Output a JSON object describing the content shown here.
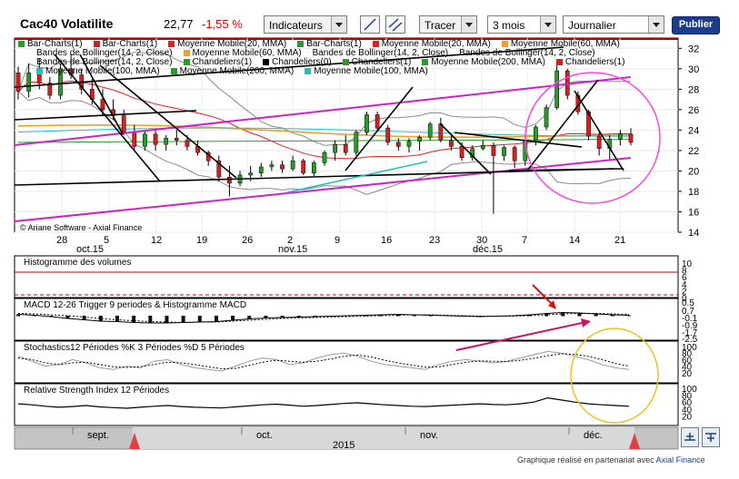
{
  "header": {
    "title": "Cac40 Volatilite",
    "price": "22,77",
    "change": "-1,55 %",
    "indicators_label": "Indicateurs",
    "draw_label": "Tracer",
    "period_label": "3 mois",
    "interval_label": "Journalier",
    "publish_label": "Publier"
  },
  "legend_rows": [
    [
      {
        "text": "Bar-Charts(1)",
        "color": "#2a9b2a"
      },
      {
        "text": "Bar-Charts(1)",
        "color": "#d62020"
      },
      {
        "text": "Moyenne Mobile(20, MMA)",
        "color": "#e02020"
      },
      {
        "text": "Bar-Charts(1)",
        "color": "#2a9b2a"
      },
      {
        "text": "Moyenne Mobile(20, MMA)",
        "color": "#e02020"
      },
      {
        "text": "Moyenne Mobile(60, MMA)",
        "color": "#f0a030"
      }
    ],
    [
      {
        "text": "Bandes de Bollinger(14, 2, Close)",
        "color": ""
      },
      {
        "text": "Moyenne Mobile(60, MMA)",
        "color": "#f0a030"
      },
      {
        "text": "Bandes de Bollinger(14, 2, Close)",
        "color": ""
      },
      {
        "text": "Bandes de Bollinger(14, 2, Close)",
        "color": ""
      }
    ],
    [
      {
        "text": "Bandes de Bollinger(14, 2, Close)",
        "color": ""
      },
      {
        "text": "Chandeliers(1)",
        "color": "#2a9b2a"
      },
      {
        "text": "Chandeliers(0)",
        "color": "#000000"
      },
      {
        "text": "Chandeliers(1)",
        "color": "#2a9b2a"
      },
      {
        "text": "Moyenne Mobile(200, MMA)",
        "color": "#2a9b2a"
      },
      {
        "text": "Chandeliers(1)",
        "color": "#d62020"
      }
    ],
    [
      {
        "text": "Moyenne Mobile(100, MMA)",
        "color": "#20c0c0"
      },
      {
        "text": "Moyenne Mobile(200, MMA)",
        "color": "#2a9b2a"
      },
      {
        "text": "Moyenne Mobile(100, MMA)",
        "color": "#20c0c0"
      }
    ]
  ],
  "copyright": "© Ariane Software - Axial Finance",
  "footer": {
    "text": "Graphique réalisé en partenariat avec",
    "link": "Axial Finance"
  },
  "chart_data": [
    {
      "type": "candlestick",
      "y_ticks": [
        14,
        16,
        18,
        20,
        22,
        24,
        26,
        28,
        30,
        32
      ],
      "ylim": [
        14,
        33
      ],
      "x_day_labels": [
        "28",
        "5",
        "12",
        "19",
        "26",
        "2",
        "9",
        "16",
        "23",
        "30",
        "7",
        "14",
        "21"
      ],
      "x_month_labels": [
        "oct.15",
        "nov.15",
        "déc.15"
      ],
      "colors": {
        "up": "#2a9b2a",
        "down": "#d62020",
        "mma20": "#e02020",
        "mma60": "#f0a030",
        "mma100": "#20c0c0",
        "mma200": "#2a9b2a",
        "bollinger": "#8a8a8a",
        "trend": "#000000",
        "channel": "#cc22cc"
      },
      "candles": [
        [
          29.6,
          30.2,
          27.0,
          27.8
        ],
        [
          27.8,
          30.5,
          27.2,
          29.6
        ],
        [
          29.6,
          31.0,
          28.0,
          28.6
        ],
        [
          28.6,
          29.2,
          27.0,
          27.4
        ],
        [
          27.4,
          30.5,
          27.0,
          30.0
        ],
        [
          30.0,
          31.5,
          29.0,
          29.4
        ],
        [
          29.4,
          30.0,
          27.5,
          28.0
        ],
        [
          28.0,
          29.0,
          26.5,
          27.0
        ],
        [
          27.0,
          28.0,
          25.5,
          26.0
        ],
        [
          26.0,
          27.0,
          25.0,
          25.4
        ],
        [
          25.4,
          26.0,
          23.5,
          23.8
        ],
        [
          23.8,
          24.5,
          22.0,
          22.4
        ],
        [
          22.4,
          24.0,
          22.0,
          23.6
        ],
        [
          23.6,
          24.0,
          22.0,
          22.6
        ],
        [
          22.6,
          23.5,
          22.0,
          23.2
        ],
        [
          23.2,
          24.0,
          22.5,
          23.0
        ],
        [
          23.0,
          23.5,
          22.0,
          22.4
        ],
        [
          22.4,
          23.0,
          21.5,
          21.8
        ],
        [
          21.8,
          22.0,
          20.5,
          21.0
        ],
        [
          21.0,
          21.5,
          19.0,
          19.4
        ],
        [
          19.4,
          20.5,
          17.5,
          18.8
        ],
        [
          18.8,
          20.0,
          18.5,
          19.6
        ],
        [
          19.6,
          20.5,
          19.0,
          19.8
        ],
        [
          19.8,
          20.8,
          19.4,
          20.4
        ],
        [
          20.4,
          21.0,
          20.0,
          20.6
        ],
        [
          20.6,
          21.0,
          19.8,
          20.2
        ],
        [
          20.2,
          21.5,
          20.0,
          21.0
        ],
        [
          21.0,
          21.2,
          19.6,
          19.8
        ],
        [
          19.8,
          21.0,
          19.5,
          20.8
        ],
        [
          20.8,
          22.0,
          20.5,
          21.8
        ],
        [
          21.8,
          23.0,
          21.0,
          22.6
        ],
        [
          22.6,
          23.5,
          21.5,
          21.8
        ],
        [
          21.8,
          24.0,
          21.5,
          23.8
        ],
        [
          23.8,
          25.8,
          23.5,
          25.5
        ],
        [
          25.5,
          25.8,
          24.0,
          24.2
        ],
        [
          24.2,
          24.5,
          22.5,
          22.8
        ],
        [
          22.8,
          23.2,
          22.0,
          22.4
        ],
        [
          22.4,
          23.2,
          21.8,
          22.9
        ],
        [
          22.9,
          23.5,
          22.0,
          23.3
        ],
        [
          23.3,
          24.8,
          23.0,
          24.6
        ],
        [
          24.6,
          25.2,
          22.8,
          23.0
        ],
        [
          23.0,
          23.5,
          22.0,
          22.4
        ],
        [
          22.4,
          22.8,
          21.0,
          21.3
        ],
        [
          21.3,
          22.5,
          21.0,
          22.2
        ],
        [
          22.2,
          23.0,
          22.0,
          22.5
        ],
        [
          22.5,
          22.8,
          15.8,
          21.5
        ],
        [
          21.5,
          22.5,
          21.0,
          22.3
        ],
        [
          22.3,
          22.5,
          20.3,
          21.0
        ],
        [
          21.0,
          23.2,
          20.5,
          23.0
        ],
        [
          23.0,
          24.5,
          22.5,
          24.3
        ],
        [
          24.3,
          26.5,
          24.0,
          26.2
        ],
        [
          26.2,
          30.5,
          26.0,
          29.8
        ],
        [
          29.8,
          30.0,
          27.0,
          27.4
        ],
        [
          27.4,
          27.8,
          25.5,
          25.8
        ],
        [
          25.8,
          26.0,
          23.0,
          23.4
        ],
        [
          23.4,
          23.8,
          21.5,
          22.2
        ],
        [
          22.2,
          23.5,
          21.0,
          23.1
        ],
        [
          23.1,
          24.0,
          22.5,
          23.6
        ],
        [
          23.6,
          24.2,
          22.5,
          22.8
        ]
      ]
    },
    {
      "type": "bar",
      "title": "Histogramme des volumes",
      "y_ticks": [
        0,
        2,
        4,
        6,
        8,
        10
      ],
      "ylim": [
        0,
        10
      ],
      "values": []
    },
    {
      "type": "line",
      "title": "MACD 12-26   Trigger 9 periodes & Histogramme MACD",
      "y_ticks": [
        0.5,
        "0.7",
        "-0.1",
        "-0.9",
        "-1.7",
        "-2.5"
      ],
      "ylim": [
        -2.5,
        0.7
      ],
      "macd": [
        0.3,
        0.1,
        -0.2,
        -0.6,
        -0.9,
        -1.2,
        -1.3,
        -1.5,
        -1.6,
        -1.6,
        -1.5,
        -1.4,
        -1.3,
        -1.0,
        -0.7,
        -0.5,
        -0.4,
        -0.3,
        -0.2,
        -0.1,
        0.0,
        0.1,
        0.2,
        0.3,
        0.2,
        0.1,
        0.0,
        -0.1,
        -0.2,
        -0.1,
        0.0,
        0.2,
        0.5,
        0.7,
        0.6,
        0.4,
        0.2,
        0.1
      ],
      "trigger": [
        0.5,
        0.4,
        0.2,
        0.0,
        -0.3,
        -0.6,
        -0.9,
        -1.1,
        -1.3,
        -1.4,
        -1.5,
        -1.4,
        -1.4,
        -1.2,
        -1.0,
        -0.8,
        -0.6,
        -0.5,
        -0.4,
        -0.3,
        -0.2,
        -0.1,
        0.0,
        0.1,
        0.2,
        0.2,
        0.1,
        0.0,
        -0.1,
        -0.1,
        -0.1,
        0.0,
        0.2,
        0.4,
        0.5,
        0.5,
        0.4,
        0.3
      ]
    },
    {
      "type": "line",
      "title": "Stochastics12 Périodes   %K 3 Périodes   %D 5 Périodes",
      "y_ticks": [
        100,
        80,
        60,
        40,
        20
      ],
      "ylim": [
        0,
        100
      ],
      "k": [
        70,
        55,
        40,
        45,
        60,
        50,
        35,
        30,
        40,
        35,
        55,
        60,
        45,
        35,
        30,
        25,
        40,
        55,
        65,
        60,
        45,
        50,
        65,
        75,
        80,
        70,
        55,
        45,
        40,
        35,
        30,
        45,
        55,
        60,
        55,
        50,
        55,
        65,
        75,
        85,
        80,
        70,
        60,
        45,
        35,
        30
      ],
      "d": [
        65,
        60,
        50,
        45,
        50,
        52,
        45,
        38,
        36,
        38,
        45,
        52,
        50,
        45,
        38,
        32,
        33,
        42,
        52,
        58,
        55,
        52,
        55,
        62,
        70,
        74,
        68,
        58,
        50,
        43,
        37,
        38,
        45,
        52,
        56,
        55,
        54,
        58,
        64,
        72,
        78,
        76,
        70,
        60,
        48,
        40
      ]
    },
    {
      "type": "line",
      "title": "Relative Strength Index 12 Périodes",
      "y_ticks": [
        100,
        80,
        60,
        40,
        20
      ],
      "ylim": [
        0,
        100
      ],
      "rsi": [
        55,
        52,
        48,
        45,
        47,
        50,
        46,
        44,
        42,
        45,
        48,
        50,
        47,
        45,
        44,
        43,
        46,
        49,
        52,
        54,
        51,
        48,
        50,
        53,
        56,
        58,
        55,
        52,
        50,
        48,
        47,
        49,
        51,
        53,
        55,
        53,
        52,
        55,
        60,
        72,
        66,
        60,
        55,
        52,
        50,
        48
      ]
    }
  ],
  "timeline": {
    "months": [
      "sept.",
      "oct.",
      "nov.",
      "déc."
    ],
    "year": "2015"
  }
}
